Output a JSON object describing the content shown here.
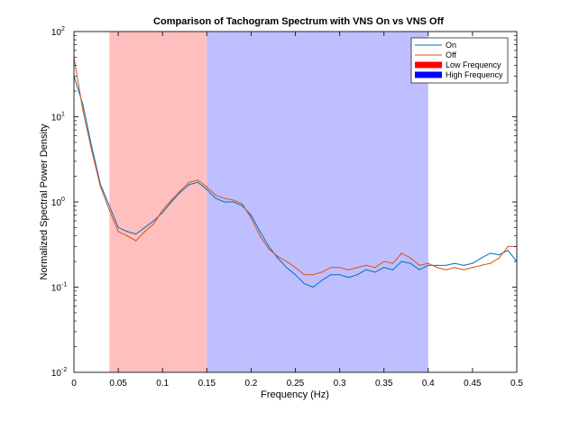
{
  "chart_data": {
    "type": "line",
    "title": "Comparison of Tachogram Spectrum with VNS On vs VNS Off",
    "xlabel": "Frequency (Hz)",
    "ylabel": "Normalized Spectral Power Density",
    "xlim": [
      0,
      0.5
    ],
    "ylim": [
      0.01,
      100
    ],
    "yscale": "log",
    "grid": false,
    "legend_position": "top-right",
    "x_ticks": [
      {
        "value": 0,
        "label": "0"
      },
      {
        "value": 0.05,
        "label": "0.05"
      },
      {
        "value": 0.1,
        "label": "0.1"
      },
      {
        "value": 0.15,
        "label": "0.15"
      },
      {
        "value": 0.2,
        "label": "0.2"
      },
      {
        "value": 0.25,
        "label": "0.25"
      },
      {
        "value": 0.3,
        "label": "0.3"
      },
      {
        "value": 0.35,
        "label": "0.35"
      },
      {
        "value": 0.4,
        "label": "0.4"
      },
      {
        "value": 0.45,
        "label": "0.45"
      },
      {
        "value": 0.5,
        "label": "0.5"
      }
    ],
    "y_ticks": [
      {
        "value": 0.01,
        "base": "10",
        "exp": "-2"
      },
      {
        "value": 0.1,
        "base": "10",
        "exp": "-1"
      },
      {
        "value": 1,
        "base": "10",
        "exp": "0"
      },
      {
        "value": 10,
        "base": "10",
        "exp": "1"
      },
      {
        "value": 100,
        "base": "10",
        "exp": "2"
      }
    ],
    "bands": [
      {
        "name": "Low Frequency",
        "from": 0.04,
        "to": 0.15,
        "color": "#ff0000",
        "fill": "#ffbfbf"
      },
      {
        "name": "High Frequency",
        "from": 0.15,
        "to": 0.4,
        "color": "#0000ff",
        "fill": "#bfbfff"
      }
    ],
    "series": [
      {
        "name": "On",
        "color": "#0072bd",
        "x": [
          0,
          0.01,
          0.02,
          0.03,
          0.04,
          0.05,
          0.06,
          0.07,
          0.08,
          0.09,
          0.1,
          0.11,
          0.12,
          0.13,
          0.14,
          0.15,
          0.16,
          0.17,
          0.18,
          0.19,
          0.2,
          0.21,
          0.22,
          0.23,
          0.24,
          0.25,
          0.26,
          0.27,
          0.28,
          0.29,
          0.3,
          0.31,
          0.32,
          0.33,
          0.34,
          0.35,
          0.36,
          0.37,
          0.38,
          0.39,
          0.4,
          0.41,
          0.42,
          0.43,
          0.44,
          0.45,
          0.46,
          0.47,
          0.48,
          0.49,
          0.5
        ],
        "y": [
          30,
          14,
          4.5,
          1.6,
          0.9,
          0.5,
          0.45,
          0.42,
          0.5,
          0.6,
          0.75,
          1.0,
          1.3,
          1.6,
          1.7,
          1.4,
          1.1,
          1.0,
          1.0,
          0.9,
          0.7,
          0.45,
          0.3,
          0.22,
          0.17,
          0.14,
          0.11,
          0.1,
          0.12,
          0.14,
          0.14,
          0.13,
          0.14,
          0.16,
          0.15,
          0.17,
          0.16,
          0.2,
          0.19,
          0.16,
          0.18,
          0.18,
          0.18,
          0.19,
          0.18,
          0.19,
          0.22,
          0.25,
          0.24,
          0.27,
          0.2
        ]
      },
      {
        "name": "Off",
        "color": "#d95319",
        "x": [
          0,
          0.01,
          0.02,
          0.03,
          0.04,
          0.05,
          0.06,
          0.07,
          0.08,
          0.09,
          0.1,
          0.11,
          0.12,
          0.13,
          0.14,
          0.15,
          0.16,
          0.17,
          0.18,
          0.19,
          0.2,
          0.21,
          0.22,
          0.23,
          0.24,
          0.25,
          0.26,
          0.27,
          0.28,
          0.29,
          0.3,
          0.31,
          0.32,
          0.33,
          0.34,
          0.35,
          0.36,
          0.37,
          0.38,
          0.39,
          0.4,
          0.41,
          0.42,
          0.43,
          0.44,
          0.45,
          0.46,
          0.47,
          0.48,
          0.49,
          0.5
        ],
        "y": [
          50,
          12,
          4.0,
          1.5,
          0.8,
          0.45,
          0.4,
          0.35,
          0.45,
          0.55,
          0.8,
          1.05,
          1.35,
          1.7,
          1.8,
          1.5,
          1.2,
          1.1,
          1.05,
          0.95,
          0.65,
          0.4,
          0.28,
          0.23,
          0.2,
          0.17,
          0.14,
          0.14,
          0.15,
          0.17,
          0.17,
          0.16,
          0.17,
          0.18,
          0.17,
          0.2,
          0.19,
          0.25,
          0.22,
          0.18,
          0.19,
          0.17,
          0.16,
          0.17,
          0.16,
          0.17,
          0.18,
          0.19,
          0.22,
          0.3,
          0.3
        ]
      }
    ],
    "legend": [
      {
        "label": "On",
        "kind": "line",
        "color": "#0072bd"
      },
      {
        "label": "Off",
        "kind": "line",
        "color": "#d95319"
      },
      {
        "label": "Low Frequency",
        "kind": "patch",
        "color": "#ff0000"
      },
      {
        "label": "High Frequency",
        "kind": "patch",
        "color": "#0000ff"
      }
    ]
  }
}
